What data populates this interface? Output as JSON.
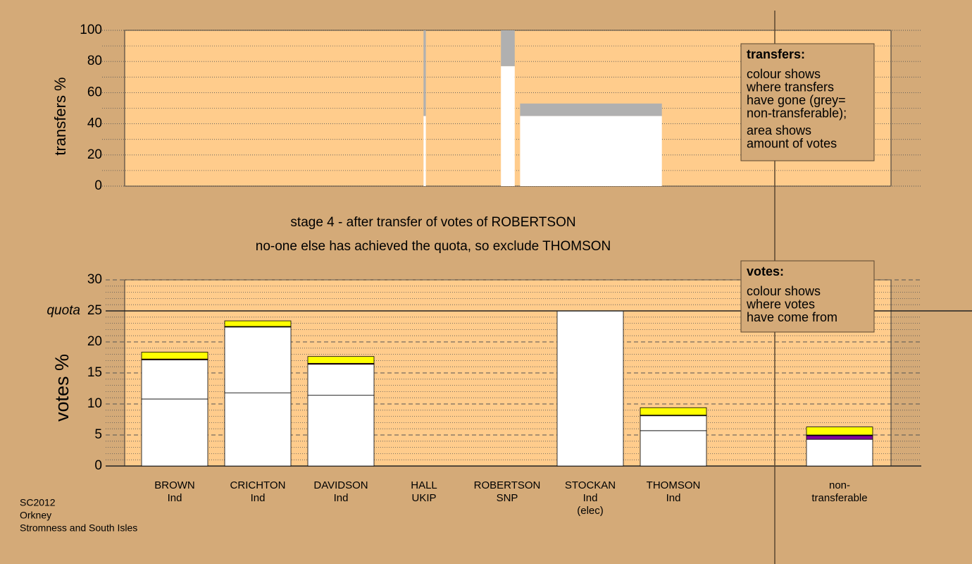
{
  "chart_data": [
    {
      "type": "bar",
      "ylabel": "transfers %",
      "ylim": [
        0,
        100
      ],
      "yticks": [
        0,
        20,
        40,
        60,
        80,
        100
      ],
      "minor_yticks": [
        10,
        30,
        50,
        70,
        90
      ],
      "xlim": [
        0,
        100
      ],
      "x0": [
        39.0,
        49.1,
        51.6
      ],
      "x1": [
        39.3,
        50.9,
        70.1
      ],
      "series": [
        {
          "color": "#ffffff",
          "values": [
            45,
            77,
            45
          ]
        },
        {
          "color": "#b0b0b0",
          "values": [
            55,
            23,
            8
          ]
        }
      ],
      "note": {
        "heading": "transfers:",
        "lines": [
          "colour shows",
          "where transfers",
          "have gone (grey=",
          "non-transferable);",
          "area shows",
          "amount of votes"
        ]
      }
    },
    {
      "type": "bar",
      "ylabel": "votes %",
      "ylim": [
        0,
        30
      ],
      "yticks": [
        0,
        5,
        10,
        15,
        20,
        25,
        30
      ],
      "minor_yticks": [
        1,
        2,
        3,
        4,
        6,
        7,
        8,
        9,
        11,
        12,
        13,
        14,
        16,
        17,
        18,
        19,
        21,
        22,
        23,
        24,
        26,
        27,
        28,
        29
      ],
      "quota": {
        "value": 25,
        "label": "quota"
      },
      "categories": [
        [
          "BROWN",
          "Ind"
        ],
        [
          "CRICHTON",
          "Ind"
        ],
        [
          "DAVIDSON",
          "Ind"
        ],
        [
          "HALL",
          "UKIP"
        ],
        [
          "ROBERTSON",
          "SNP"
        ],
        [
          "STOCKAN",
          "Ind",
          "(elec)"
        ],
        [
          "THOMSON",
          "Ind"
        ],
        null,
        [
          "non-",
          "transferable"
        ]
      ],
      "series": [
        {
          "color": "#ffffff",
          "values": [
            10.8,
            11.8,
            11.4,
            0,
            0,
            25,
            5.7,
            null,
            0
          ]
        },
        {
          "color": "#ffffff",
          "values": [
            6.3,
            10.6,
            5.0,
            0,
            0,
            0,
            2.4,
            null,
            4.3
          ]
        },
        {
          "color": "#8000a0",
          "values": [
            0,
            0,
            0,
            0,
            0,
            0,
            0,
            null,
            0.6
          ]
        },
        {
          "color": "#8b1a1a",
          "values": [
            0.15,
            0.1,
            0.15,
            0,
            0,
            0,
            0.1,
            null,
            0.1
          ]
        },
        {
          "color": "#ffff00",
          "values": [
            1.1,
            0.9,
            1.1,
            0,
            0,
            0,
            1.2,
            null,
            1.3
          ]
        }
      ],
      "note": {
        "heading": "votes:",
        "lines": [
          "colour shows",
          "where votes",
          "have come from"
        ]
      }
    }
  ],
  "stage": [
    "stage 4 - after transfer of votes of ROBERTSON",
    "no-one else has achieved the quota, so exclude THOMSON"
  ],
  "footer": [
    "SC2012",
    "Orkney",
    "Stromness and South Isles"
  ]
}
